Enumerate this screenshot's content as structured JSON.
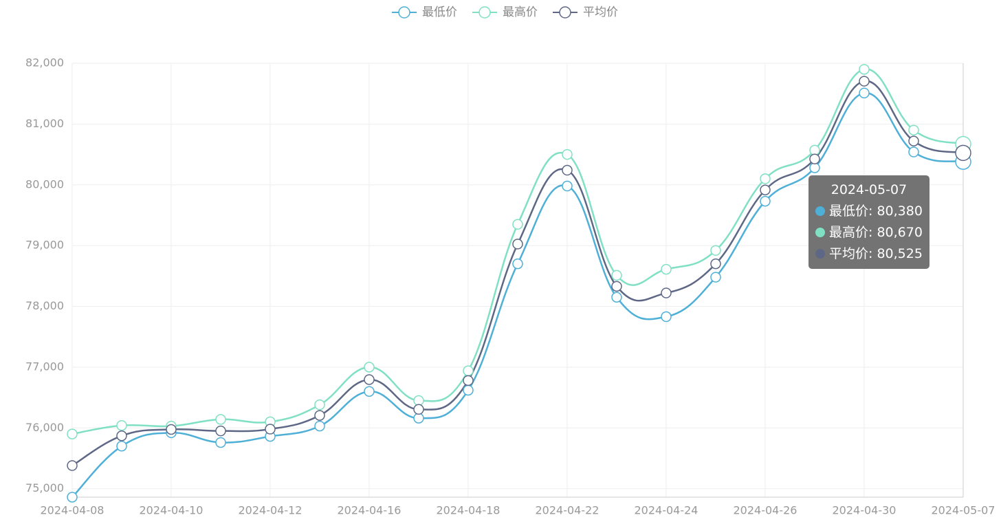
{
  "chart_data": {
    "type": "line",
    "categories": [
      "2024-04-08",
      null,
      "2024-04-10",
      null,
      "2024-04-12",
      null,
      "2024-04-16",
      null,
      "2024-04-18",
      null,
      "2024-04-22",
      null,
      "2024-04-24",
      null,
      "2024-04-26",
      null,
      "2024-04-30",
      null,
      "2024-05-07"
    ],
    "series": [
      {
        "name": "最低价",
        "color": "#4eafd7",
        "values": [
          74860,
          75700,
          75920,
          75760,
          75860,
          76030,
          76600,
          76160,
          76620,
          78700,
          79980,
          78150,
          77830,
          78480,
          79730,
          80280,
          81510,
          80540,
          80380
        ]
      },
      {
        "name": "最高价",
        "color": "#7fe0c4",
        "values": [
          75900,
          76040,
          76030,
          76140,
          76100,
          76380,
          77000,
          76450,
          76940,
          79350,
          80500,
          78510,
          78610,
          78920,
          80100,
          80570,
          81900,
          80900,
          80670
        ]
      },
      {
        "name": "平均价",
        "color": "#5e6785",
        "values": [
          75380,
          75870,
          75975,
          75950,
          75980,
          76205,
          76795,
          76305,
          76780,
          79025,
          80240,
          78330,
          78220,
          78700,
          79915,
          80425,
          81705,
          80720,
          80525
        ]
      }
    ],
    "ylim": [
      74860,
      82000
    ],
    "yticks": [
      {
        "value": 75000,
        "label": "75,000"
      },
      {
        "value": 76000,
        "label": "76,000"
      },
      {
        "value": 77000,
        "label": "77,000"
      },
      {
        "value": 78000,
        "label": "78,000"
      },
      {
        "value": 79000,
        "label": "79,000"
      },
      {
        "value": 80000,
        "label": "80,000"
      },
      {
        "value": 81000,
        "label": "81,000"
      },
      {
        "value": 82000,
        "label": "82,000"
      }
    ],
    "grid": true,
    "legend": "top",
    "tooltip": {
      "title": "2024-05-07",
      "lines": [
        "最低价: 80,380",
        "最高价: 80,670",
        "平均价: 80,525"
      ]
    }
  }
}
